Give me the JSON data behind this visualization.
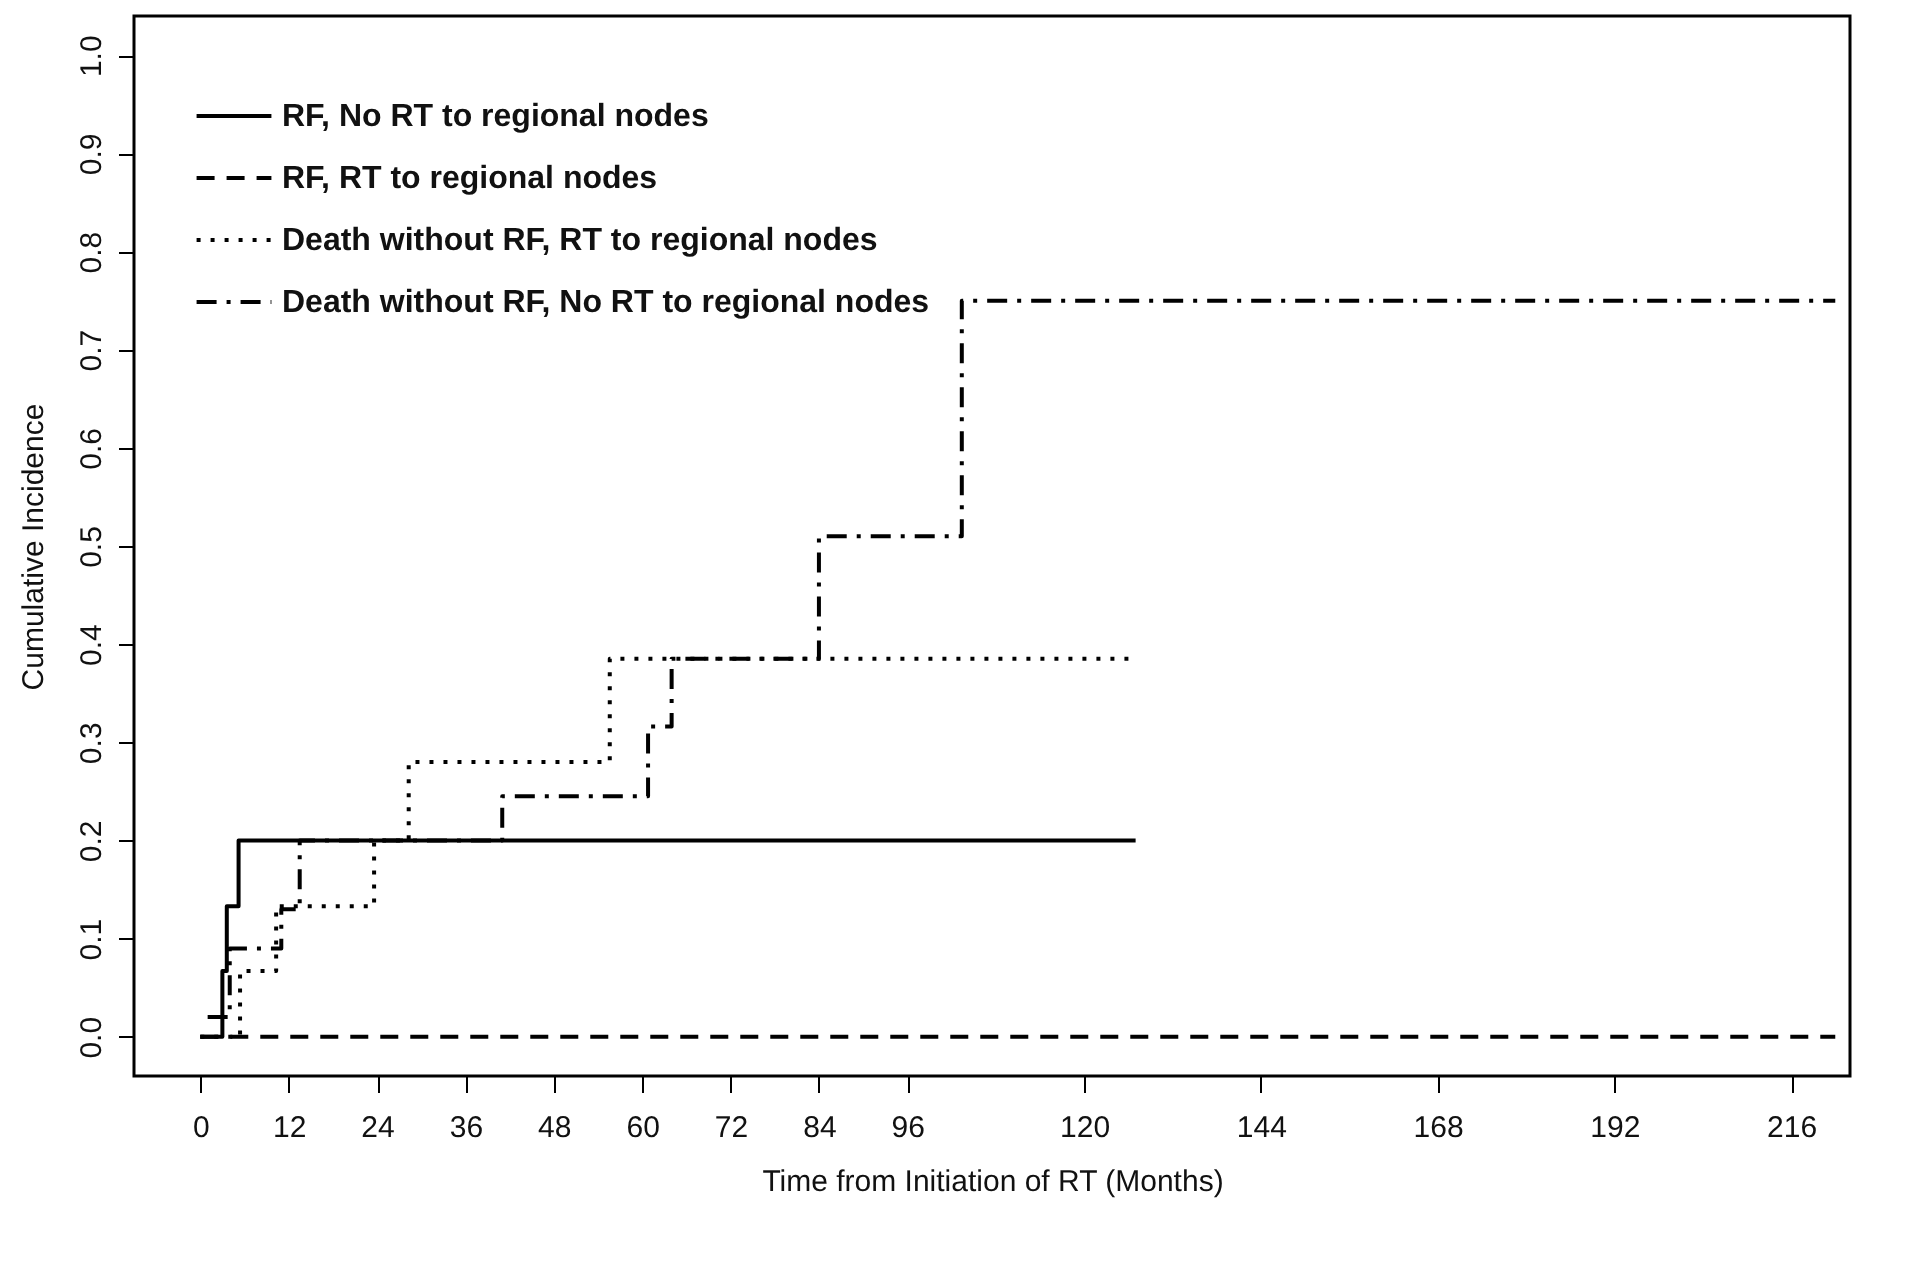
{
  "chart_data": {
    "type": "step",
    "xlabel": "Time from Initiation of RT (Months)",
    "ylabel": "Cumulative Incidence",
    "xlim": [
      -9,
      224
    ],
    "ylim": [
      -0.04,
      1.04
    ],
    "xticks": [
      0,
      12,
      24,
      36,
      48,
      60,
      72,
      84,
      96,
      120,
      144,
      168,
      192,
      216
    ],
    "yticks": [
      {
        "value": 0,
        "label": "0.0"
      },
      {
        "value": 0.1,
        "label": "0.1"
      },
      {
        "value": 0.2,
        "label": "0.2"
      },
      {
        "value": 0.3,
        "label": "0.3"
      },
      {
        "value": 0.4,
        "label": "0.4"
      },
      {
        "value": 0.5,
        "label": "0.5"
      },
      {
        "value": 0.6,
        "label": "0.6"
      },
      {
        "value": 0.7,
        "label": "0.7"
      },
      {
        "value": 0.8,
        "label": "0.8"
      },
      {
        "value": 0.9,
        "label": "0.9"
      },
      {
        "value": 1,
        "label": "1.0"
      }
    ],
    "legend": "top left",
    "grid": false,
    "marker": "none",
    "series": [
      {
        "name": "RF, No RT to regional nodes",
        "color": "#000000",
        "line_style": "solid",
        "x": [
          0,
          3,
          3.6,
          5.2,
          127
        ],
        "values": [
          0,
          0.067,
          0.133,
          0.2,
          0.2
        ]
      },
      {
        "name": "RF, RT to regional nodes",
        "color": "#000000",
        "line_style": "dashed",
        "x": [
          0,
          222
        ],
        "values": [
          0,
          0
        ]
      },
      {
        "name": "Death without RF, RT to regional nodes",
        "color": "#000000",
        "line_style": "dotted",
        "x": [
          0,
          5.4,
          10.3,
          23.6,
          28.3,
          55.6,
          127
        ],
        "values": [
          0,
          0.067,
          0.133,
          0.2,
          0.28,
          0.385,
          0.385
        ]
      },
      {
        "name": "Death without RF, No RT to regional nodes",
        "color": "#000000",
        "line_style": "dashdot",
        "x": [
          1,
          4,
          11,
          13.5,
          41,
          60.8,
          64,
          84,
          103.4,
          222
        ],
        "values": [
          0.02,
          0.09,
          0.13,
          0.2,
          0.245,
          0.316,
          0.385,
          0.51,
          0.75,
          0.75
        ]
      }
    ]
  }
}
